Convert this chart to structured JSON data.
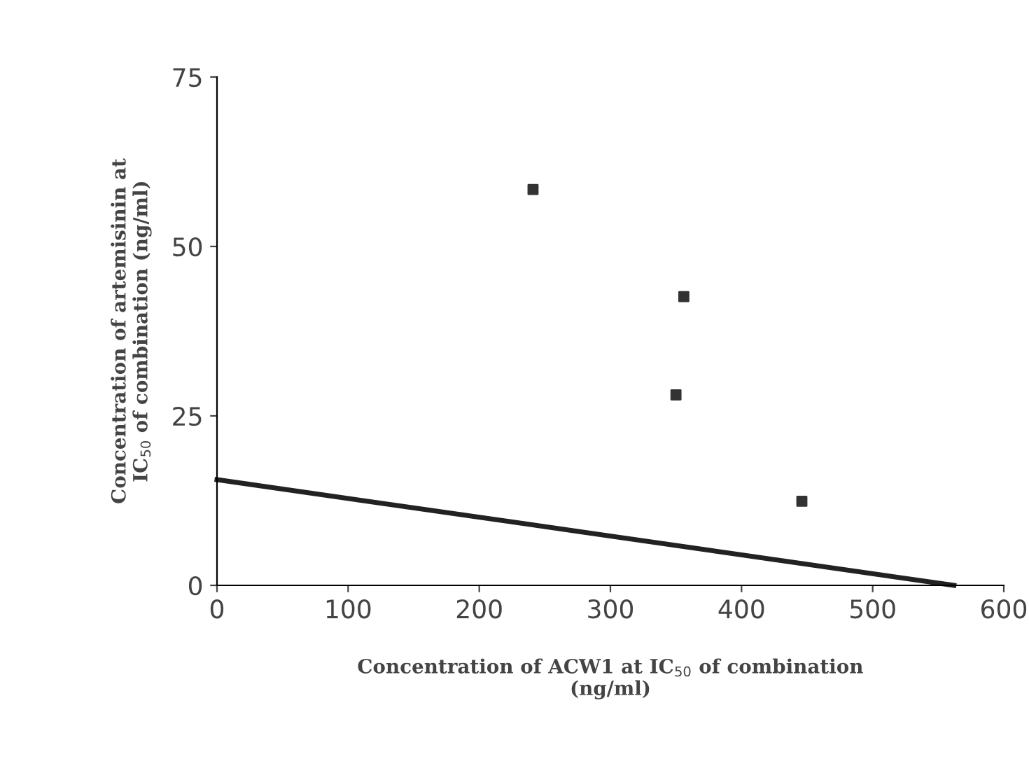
{
  "chart_data": {
    "type": "scatter",
    "xlabel": "Concentration of ACW1 at IC$_{50}$ of combination\n(ng/ml)",
    "ylabel": "Concentration of artemisinin at\nIC$_{50}$ of combination (ng/ml)",
    "xlim": [
      0,
      600
    ],
    "xticks": [
      0,
      100,
      200,
      300,
      400,
      500,
      600
    ],
    "ylim": [
      0,
      75
    ],
    "yticks": [
      0,
      25,
      50,
      75
    ],
    "grid": false,
    "legend": false,
    "series": [
      {
        "color": "#333333",
        "marker": "square",
        "x": [
          241,
          356,
          350,
          446
        ],
        "values": [
          58.4,
          42.6,
          28.1,
          12.4
        ]
      },
      {
        "type": "line",
        "color": "#222222",
        "marker": "none",
        "line_style": "solid",
        "x": [
          0,
          562
        ],
        "values": [
          15.6,
          0
        ]
      }
    ]
  }
}
